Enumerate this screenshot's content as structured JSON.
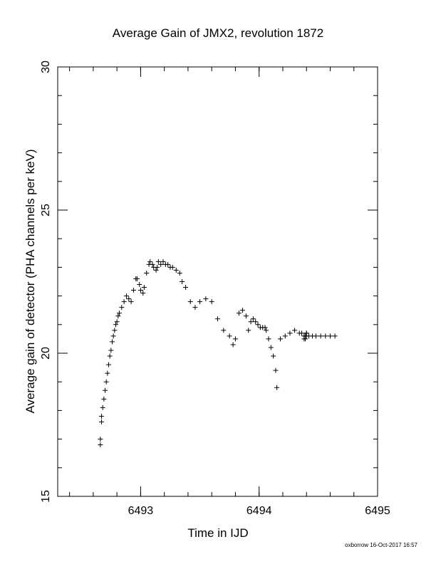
{
  "chart_data": {
    "type": "scatter",
    "title": "Average Gain of JMX2, revolution 1872",
    "xlabel": "Time in IJD",
    "ylabel": "Average gain of detector (PHA channels per keV)",
    "xlim": [
      6492.3,
      6495.0
    ],
    "ylim": [
      15,
      30
    ],
    "xticks": [
      6493,
      6494,
      6495
    ],
    "xtick_labels": [
      "6493",
      "6494",
      "6495"
    ],
    "xminor_step": 0.2,
    "yticks": [
      15,
      20,
      25,
      30
    ],
    "ytick_labels": [
      "15",
      "20",
      "25",
      "30"
    ],
    "yminor_step": 1,
    "grid": false,
    "marker": "+",
    "color": "#000000",
    "series": [
      {
        "x": [
          6492.66,
          6492.66,
          6492.67,
          6492.67,
          6492.68,
          6492.69,
          6492.7,
          6492.71,
          6492.72,
          6492.73,
          6492.74,
          6492.75,
          6492.76,
          6492.77,
          6492.78,
          6492.79,
          6492.8,
          6492.81,
          6492.82,
          6492.84,
          6492.86,
          6492.88,
          6492.9,
          6492.92,
          6492.94,
          6492.96,
          6492.97,
          6492.99,
          6493.0,
          6493.02,
          6493.03,
          6493.05,
          6493.07,
          6493.08,
          6493.1,
          6493.11,
          6493.13,
          6493.14,
          6493.15,
          6493.17,
          6493.19,
          6493.21,
          6493.23,
          6493.25,
          6493.27,
          6493.3,
          6493.33,
          6493.35,
          6493.38,
          6493.42,
          6493.46,
          6493.5,
          6493.55,
          6493.6,
          6493.65,
          6493.7,
          6493.75,
          6493.78,
          6493.8,
          6493.83,
          6493.86,
          6493.89,
          6493.91,
          6493.93,
          6493.95,
          6493.97,
          6493.99,
          6494.01,
          6494.03,
          6494.05,
          6494.06,
          6494.08,
          6494.1,
          6494.12,
          6494.14,
          6494.15,
          6494.18,
          6494.22,
          6494.26,
          6494.3,
          6494.34,
          6494.36,
          6494.38,
          6494.38,
          6494.39,
          6494.39,
          6494.39,
          6494.4,
          6494.4,
          6494.4,
          6494.42,
          6494.45,
          6494.48,
          6494.52,
          6494.56,
          6494.6,
          6494.64
        ],
        "y": [
          16.8,
          17.0,
          17.6,
          17.8,
          18.1,
          18.4,
          18.7,
          19.0,
          19.3,
          19.6,
          19.9,
          20.1,
          20.4,
          20.6,
          20.8,
          21.0,
          21.1,
          21.3,
          21.4,
          21.6,
          21.8,
          22.0,
          21.9,
          21.8,
          22.2,
          22.6,
          22.6,
          22.4,
          22.2,
          22.1,
          22.3,
          22.8,
          23.1,
          23.2,
          23.1,
          23.0,
          22.9,
          23.0,
          23.2,
          23.1,
          23.2,
          23.1,
          23.1,
          23.0,
          23.0,
          22.9,
          22.8,
          22.5,
          22.3,
          21.8,
          21.6,
          21.8,
          21.9,
          21.8,
          21.2,
          20.8,
          20.6,
          20.3,
          20.5,
          21.4,
          21.5,
          21.3,
          20.8,
          21.1,
          21.2,
          21.1,
          21.0,
          20.9,
          20.9,
          20.9,
          20.8,
          20.5,
          20.2,
          19.9,
          19.4,
          18.8,
          20.5,
          20.6,
          20.7,
          20.8,
          20.7,
          20.7,
          20.6,
          20.5,
          20.5,
          20.6,
          20.6,
          20.7,
          20.7,
          20.6,
          20.6,
          20.6,
          20.6,
          20.6,
          20.6,
          20.6,
          20.6
        ]
      }
    ]
  },
  "footer": "oxborrow 16-Oct-2017 16:57"
}
